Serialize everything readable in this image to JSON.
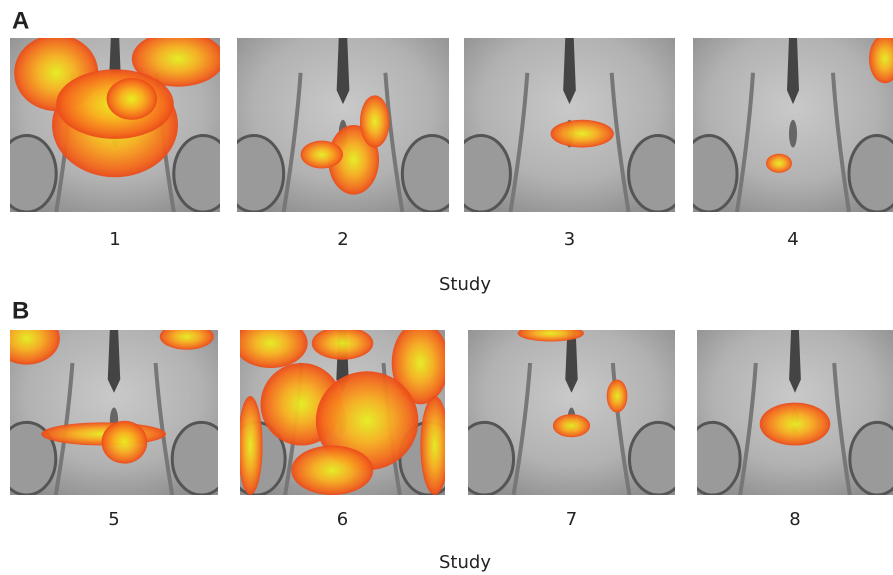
{
  "panels": [
    {
      "label": "A",
      "studies": [
        "1",
        "2",
        "3",
        "4"
      ],
      "axis_label": "Study"
    },
    {
      "label": "B",
      "studies": [
        "5",
        "6",
        "7",
        "8"
      ],
      "axis_label": "Study"
    }
  ]
}
